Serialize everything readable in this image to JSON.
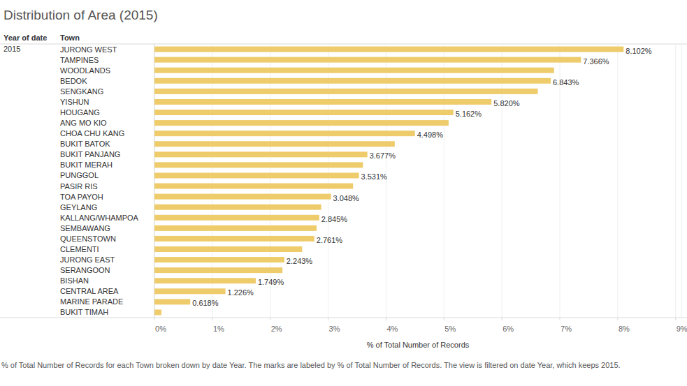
{
  "chart_data": {
    "type": "bar",
    "orientation": "horizontal",
    "title": "Distribution of Area (2015)",
    "row_headers": [
      "Year of date",
      "Town"
    ],
    "row_group": "2015",
    "xlabel": "% of Total Number of Records",
    "caption": "% of Total Number of Records for each Town broken down by date Year.  The marks are labeled by % of Total Number of Records. The view is filtered on date Year, which keeps 2015.",
    "categories": [
      "JURONG WEST",
      "TAMPINES",
      "WOODLANDS",
      "BEDOK",
      "SENGKANG",
      "YISHUN",
      "HOUGANG",
      "ANG MO KIO",
      "CHOA CHU KANG",
      "BUKIT BATOK",
      "BUKIT PANJANG",
      "BUKIT MERAH",
      "PUNGGOL",
      "PASIR RIS",
      "TOA PAYOH",
      "GEYLANG",
      "KALLANG/WHAMPOA",
      "SEMBAWANG",
      "QUEENSTOWN",
      "CLEMENTI",
      "JURONG EAST",
      "SERANGOON",
      "BISHAN",
      "CENTRAL AREA",
      "MARINE PARADE",
      "BUKIT TIMAH"
    ],
    "values": [
      8.102,
      7.366,
      6.9,
      6.843,
      6.62,
      5.82,
      5.162,
      5.08,
      4.498,
      4.15,
      3.677,
      3.6,
      3.531,
      3.43,
      3.048,
      2.88,
      2.845,
      2.8,
      2.761,
      2.55,
      2.243,
      2.21,
      1.749,
      1.226,
      0.618,
      0.12
    ],
    "value_labels": [
      "8.102%",
      "7.366%",
      null,
      "6.843%",
      null,
      "5.820%",
      "5.162%",
      null,
      "4.498%",
      null,
      "3.677%",
      null,
      "3.531%",
      null,
      "3.048%",
      null,
      "2.845%",
      null,
      "2.761%",
      null,
      "2.243%",
      null,
      "1.749%",
      "1.226%",
      "0.618%",
      null
    ],
    "data_labels": true,
    "color": "#eecb6b",
    "grid": true,
    "xlim": [
      0,
      9.1
    ],
    "xticks": [
      {
        "value": 0,
        "label": "0%"
      },
      {
        "value": 1,
        "label": "1%"
      },
      {
        "value": 2,
        "label": "2%"
      },
      {
        "value": 3,
        "label": "3%"
      },
      {
        "value": 4,
        "label": "4%"
      },
      {
        "value": 5,
        "label": "5%"
      },
      {
        "value": 6,
        "label": "6%"
      },
      {
        "value": 7,
        "label": "7%"
      },
      {
        "value": 8,
        "label": "8%"
      },
      {
        "value": 9,
        "label": "9%"
      }
    ]
  }
}
